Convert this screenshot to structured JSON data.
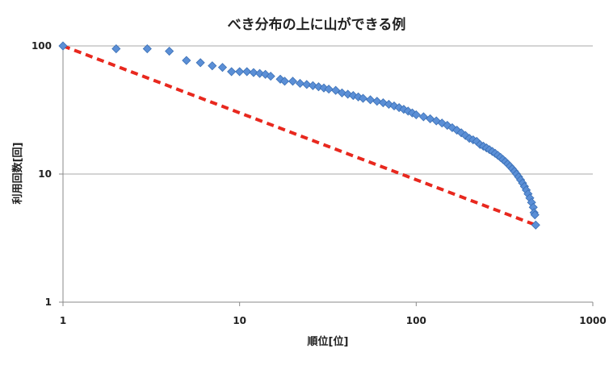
{
  "chart_data": {
    "type": "scatter",
    "title": "べき分布の上に山ができる例",
    "xlabel": "順位[位]",
    "ylabel": "利用回数[回]",
    "x_scale": "log",
    "y_scale": "log",
    "xlim": [
      1,
      1000
    ],
    "ylim": [
      1,
      100
    ],
    "x_ticks": [
      "1",
      "10",
      "100",
      "1000"
    ],
    "y_ticks": [
      "1",
      "10",
      "100"
    ],
    "grid": "horizontal",
    "legend": "none",
    "colors": {
      "marker": "#5b8fd6",
      "marker_edge": "#3a6fb5",
      "reference_line": "#e8281e"
    },
    "series": [
      {
        "marker": "diamond",
        "points": [
          [
            1,
            100
          ],
          [
            2,
            95
          ],
          [
            3,
            95
          ],
          [
            4,
            91
          ],
          [
            5,
            77
          ],
          [
            6,
            74
          ],
          [
            7,
            70
          ],
          [
            8,
            68
          ],
          [
            9,
            63
          ],
          [
            10,
            63
          ],
          [
            11,
            63
          ],
          [
            12,
            62
          ],
          [
            13,
            61
          ],
          [
            14,
            60
          ],
          [
            15,
            58
          ],
          [
            17,
            55
          ],
          [
            18,
            53
          ],
          [
            20,
            53
          ],
          [
            22,
            51
          ],
          [
            24,
            50
          ],
          [
            26,
            49
          ],
          [
            28,
            48
          ],
          [
            30,
            47
          ],
          [
            32,
            46
          ],
          [
            35,
            45
          ],
          [
            38,
            43
          ],
          [
            41,
            42
          ],
          [
            44,
            41
          ],
          [
            47,
            40
          ],
          [
            50,
            39
          ],
          [
            55,
            38
          ],
          [
            60,
            37
          ],
          [
            65,
            36
          ],
          [
            70,
            35
          ],
          [
            75,
            34
          ],
          [
            80,
            33
          ],
          [
            85,
            32
          ],
          [
            90,
            31
          ],
          [
            95,
            30
          ],
          [
            100,
            29
          ],
          [
            110,
            28
          ],
          [
            120,
            27
          ],
          [
            130,
            26
          ],
          [
            140,
            25
          ],
          [
            150,
            24
          ],
          [
            160,
            23
          ],
          [
            170,
            22
          ],
          [
            180,
            21
          ],
          [
            190,
            20
          ],
          [
            200,
            19
          ],
          [
            210,
            18.5
          ],
          [
            220,
            18
          ],
          [
            230,
            17
          ],
          [
            240,
            16.5
          ],
          [
            250,
            16
          ],
          [
            260,
            15.5
          ],
          [
            270,
            15
          ],
          [
            280,
            14.5
          ],
          [
            290,
            14
          ],
          [
            300,
            13.5
          ],
          [
            310,
            13
          ],
          [
            320,
            12.5
          ],
          [
            330,
            12
          ],
          [
            340,
            11.5
          ],
          [
            350,
            11
          ],
          [
            360,
            10.5
          ],
          [
            370,
            10
          ],
          [
            380,
            9.5
          ],
          [
            390,
            9
          ],
          [
            400,
            8.5
          ],
          [
            410,
            8
          ],
          [
            420,
            7.5
          ],
          [
            430,
            7
          ],
          [
            440,
            6.5
          ],
          [
            450,
            6
          ],
          [
            460,
            5.5
          ],
          [
            465,
            5
          ],
          [
            470,
            4.8
          ],
          [
            475,
            4
          ]
        ]
      }
    ],
    "reference_line": {
      "style": "dashed",
      "from": [
        1,
        100
      ],
      "to": [
        475,
        4
      ]
    }
  }
}
